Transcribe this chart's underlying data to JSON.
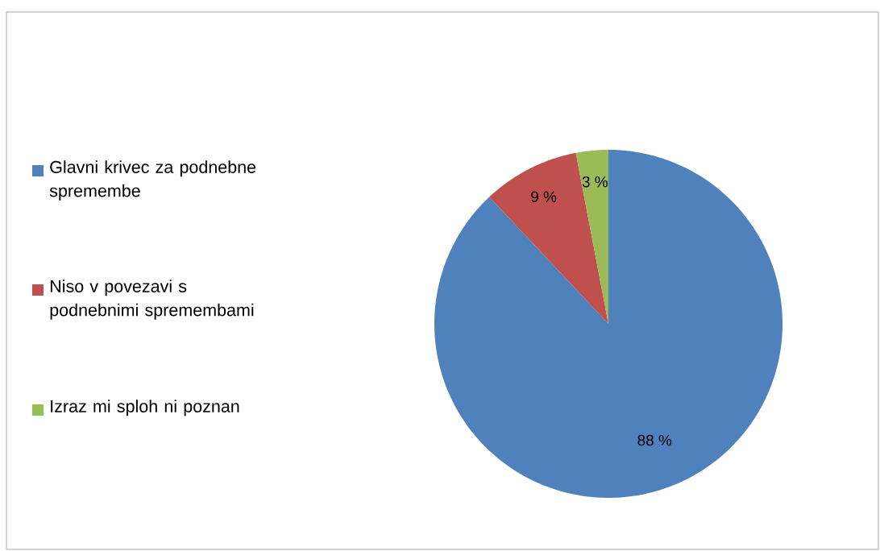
{
  "chart_data": {
    "type": "pie",
    "categories": [
      "Glavni krivec za podnebne spremembe",
      "Niso v povezavi s podnebnimi spremembami",
      "Izraz mi sploh ni poznan"
    ],
    "values": [
      88,
      9,
      3
    ],
    "colors": [
      "#4f81bd",
      "#c0504d",
      "#9bbb59"
    ],
    "value_labels": [
      "88 %",
      "9 %",
      "3 %"
    ],
    "legend": "left"
  }
}
